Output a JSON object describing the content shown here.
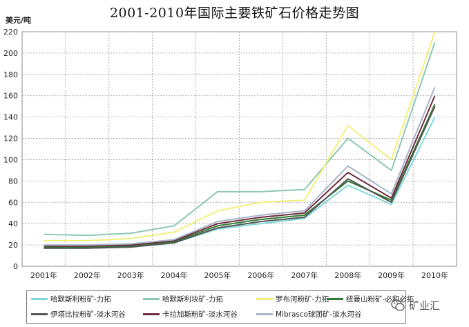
{
  "title": "2001-2010年国际主要铁矿石价格走势图",
  "watermark": "矿业汇",
  "chart_data": {
    "type": "line",
    "title": "2001-2010年国际主要铁矿石价格走势图",
    "xlabel": "",
    "ylabel": "美元/吨",
    "categories": [
      "2001年",
      "2002年",
      "2003年",
      "2004年",
      "2005年",
      "2006年",
      "2007年",
      "2008年",
      "2009年",
      "2010年"
    ],
    "ylim": [
      0,
      220
    ],
    "yticks": [
      0,
      20,
      40,
      60,
      80,
      100,
      120,
      140,
      160,
      180,
      200,
      220
    ],
    "grid": true,
    "legend_position": "bottom",
    "series": [
      {
        "name": "哈默斯利粉矿-力拓",
        "color": "#7fd8d8",
        "values": [
          17,
          17,
          18,
          22,
          35,
          40,
          45,
          76,
          58,
          140
        ]
      },
      {
        "name": "哈默斯利块矿-力拓",
        "color": "#8bc8b4",
        "values": [
          30,
          29,
          31,
          38,
          70,
          70,
          72,
          120,
          90,
          210
        ]
      },
      {
        "name": "罗布河粉矿-力拓",
        "color": "#f2f07a",
        "values": [
          24,
          24,
          26,
          32,
          52,
          60,
          62,
          132,
          100,
          220
        ]
      },
      {
        "name": "纽曼山粉矿-必和必拓",
        "color": "#2e7d32",
        "values": [
          18,
          18,
          19,
          23,
          38,
          44,
          48,
          80,
          62,
          152
        ]
      },
      {
        "name": "伊塔比拉粉矿-淡水河谷",
        "color": "#555555",
        "values": [
          17,
          17,
          18,
          22,
          36,
          42,
          46,
          82,
          60,
          150
        ]
      },
      {
        "name": "卡拉加斯粉矿-淡水河谷",
        "color": "#6d2b3d",
        "values": [
          19,
          19,
          20,
          24,
          40,
          46,
          50,
          88,
          64,
          160
        ]
      },
      {
        "name": "Mibrasco球团矿-淡水河谷",
        "color": "#a8b4c8",
        "values": [
          20,
          20,
          21,
          25,
          42,
          48,
          52,
          94,
          68,
          168
        ]
      }
    ]
  }
}
